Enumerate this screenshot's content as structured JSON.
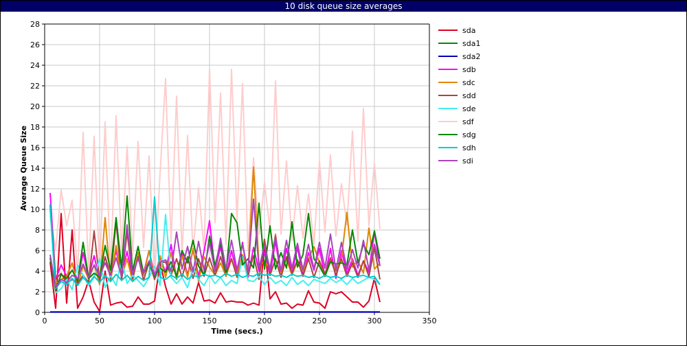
{
  "header": {
    "title": "10 disk queue size averages"
  },
  "chart_data": {
    "type": "line",
    "title": "10 disk queue size averages",
    "xlabel": "Time (secs.)",
    "ylabel": "Average Queue Size",
    "xlim": [
      0,
      350
    ],
    "ylim": [
      0,
      28
    ],
    "xticks": [
      0,
      50,
      100,
      150,
      200,
      250,
      300,
      350
    ],
    "yticks": [
      0,
      2,
      4,
      6,
      8,
      10,
      12,
      14,
      16,
      18,
      20,
      22,
      24,
      26,
      28
    ],
    "grid": true,
    "legend_position": "right",
    "x": [
      5,
      10,
      15,
      20,
      25,
      30,
      35,
      40,
      45,
      50,
      55,
      60,
      65,
      70,
      75,
      80,
      85,
      90,
      95,
      100,
      105,
      110,
      115,
      120,
      125,
      130,
      135,
      140,
      145,
      150,
      155,
      160,
      165,
      170,
      175,
      180,
      185,
      190,
      195,
      200,
      205,
      210,
      215,
      220,
      225,
      230,
      235,
      240,
      245,
      250,
      255,
      260,
      265,
      270,
      275,
      280,
      285,
      290,
      295,
      300,
      305
    ],
    "series": [
      {
        "name": "sda",
        "color": "#dd0022",
        "values": [
          4.9,
          0.4,
          9.6,
          0.9,
          8.0,
          0.4,
          1.5,
          3.1,
          1.0,
          0.1,
          4.0,
          0.7,
          0.9,
          1.0,
          0.5,
          0.6,
          1.5,
          0.8,
          0.8,
          1.1,
          4.8,
          2.5,
          0.8,
          1.8,
          0.8,
          1.5,
          0.9,
          2.9,
          1.1,
          1.2,
          0.9,
          1.9,
          1.0,
          1.1,
          1.0,
          1.0,
          0.7,
          0.9,
          0.7,
          6.7,
          1.3,
          2.0,
          0.8,
          0.9,
          0.4,
          0.8,
          0.7,
          2.1,
          1.0,
          0.9,
          0.4,
          2.0,
          1.8,
          2.0,
          1.5,
          1.0,
          1.0,
          0.5,
          1.1,
          3.3,
          1.0
        ]
      },
      {
        "name": "sda1",
        "color": "#008800",
        "values": [
          0.05,
          0.05,
          0.05,
          0.05,
          0.05,
          0.05,
          0.05,
          0.05,
          0.05,
          0.05,
          0.05,
          0.05,
          0.05,
          0.05,
          0.05,
          0.05,
          0.05,
          0.05,
          0.05,
          0.05,
          0.05,
          0.05,
          0.05,
          0.05,
          0.05,
          0.05,
          0.05,
          0.05,
          0.05,
          0.05,
          0.05,
          0.05,
          0.05,
          0.05,
          0.05,
          0.05,
          0.05,
          0.05,
          0.05,
          0.05,
          0.05,
          0.05,
          0.05,
          0.05,
          0.05,
          0.05,
          0.05,
          0.05,
          0.05,
          0.05,
          0.05,
          0.05,
          0.05,
          0.05,
          0.05,
          0.05,
          0.05,
          0.05,
          0.05,
          0.05,
          0.05
        ]
      },
      {
        "name": "sda2",
        "color": "#0000bb",
        "values": [
          0.03,
          0.03,
          0.03,
          0.03,
          0.03,
          0.03,
          0.03,
          0.03,
          0.03,
          0.03,
          0.03,
          0.03,
          0.03,
          0.03,
          0.03,
          0.03,
          0.03,
          0.03,
          0.03,
          0.03,
          0.03,
          0.03,
          0.03,
          0.03,
          0.03,
          0.03,
          0.03,
          0.03,
          0.03,
          0.03,
          0.03,
          0.03,
          0.03,
          0.03,
          0.03,
          0.03,
          0.03,
          0.03,
          0.03,
          0.03,
          0.03,
          0.03,
          0.03,
          0.03,
          0.03,
          0.03,
          0.03,
          0.03,
          0.03,
          0.03,
          0.03,
          0.03,
          0.03,
          0.03,
          0.03,
          0.03,
          0.03,
          0.03,
          0.03,
          0.03,
          0.03
        ]
      },
      {
        "name": "sdb",
        "color": "#ff00ff",
        "values": [
          11.6,
          3.2,
          4.6,
          3.5,
          4.8,
          3.0,
          5.8,
          3.4,
          5.5,
          3.1,
          5.4,
          3.6,
          6.0,
          3.7,
          5.9,
          3.4,
          5.6,
          3.8,
          6.0,
          3.6,
          5.3,
          3.9,
          6.6,
          3.2,
          5.8,
          3.6,
          6.1,
          3.5,
          5.9,
          8.9,
          4.0,
          6.4,
          3.5,
          6.0,
          3.8,
          6.8,
          3.4,
          6.3,
          4.0,
          5.8,
          3.6,
          6.9,
          3.5,
          6.2,
          3.8,
          6.3,
          3.6,
          5.8,
          4.1,
          6.2,
          3.5,
          6.2,
          3.3,
          6.0,
          3.8,
          5.2,
          3.6,
          5.0,
          3.9,
          7.9,
          4.5
        ]
      },
      {
        "name": "sdc",
        "color": "#dd8800",
        "values": [
          10.0,
          2.8,
          3.2,
          3.5,
          4.8,
          2.6,
          4.5,
          3.2,
          4.6,
          2.7,
          9.2,
          3.0,
          6.5,
          3.4,
          5.2,
          3.0,
          5.8,
          3.6,
          6.0,
          3.2,
          5.5,
          3.4,
          5.8,
          3.2,
          5.5,
          3.4,
          6.2,
          3.0,
          5.4,
          4.4,
          3.6,
          4.8,
          3.5,
          5.2,
          3.6,
          5.6,
          4.0,
          14.1,
          4.5,
          5.0,
          4.2,
          7.6,
          3.8,
          5.2,
          3.6,
          5.0,
          4.0,
          5.2,
          6.4,
          4.8,
          3.8,
          5.0,
          4.0,
          5.3,
          9.7,
          4.4,
          5.0,
          3.8,
          8.2,
          4.2,
          4.8
        ]
      },
      {
        "name": "sdd",
        "color": "#aa4444",
        "values": [
          10.4,
          3.2,
          3.8,
          2.8,
          3.2,
          2.8,
          3.6,
          2.9,
          7.9,
          3.0,
          5.4,
          3.3,
          8.8,
          3.1,
          7.8,
          3.3,
          5.4,
          3.1,
          4.9,
          3.2,
          4.8,
          4.9,
          3.6,
          5.2,
          3.4,
          5.4,
          3.3,
          5.2,
          3.5,
          5.3,
          3.6,
          5.4,
          3.7,
          5.2,
          3.4,
          5.1,
          3.6,
          5.5,
          3.2,
          7.1,
          3.6,
          5.2,
          3.4,
          5.4,
          3.8,
          5.1,
          3.5,
          5.2,
          3.4,
          5.0,
          3.7,
          5.3,
          3.6,
          5.2,
          3.5,
          4.8,
          3.4,
          5.0,
          3.5,
          6.3,
          3.2
        ]
      },
      {
        "name": "sde",
        "color": "#44eeee",
        "values": [
          10.2,
          1.9,
          2.3,
          3.2,
          2.2,
          4.6,
          3.6,
          2.6,
          3.4,
          5.2,
          2.4,
          3.6,
          2.6,
          5.1,
          2.8,
          3.6,
          3.1,
          2.5,
          3.4,
          4.5,
          2.6,
          9.5,
          3.4,
          2.8,
          3.4,
          2.4,
          4.4,
          3.2,
          2.6,
          3.6,
          2.8,
          3.4,
          2.6,
          3.1,
          2.8,
          5.4,
          3.1,
          3.0,
          3.5,
          2.7,
          3.4,
          2.8,
          3.1,
          2.6,
          3.4,
          2.7,
          3.1,
          2.6,
          3.2,
          3.0,
          2.8,
          3.3,
          2.9,
          3.2,
          2.7,
          3.3,
          2.8,
          3.1,
          3.4,
          3.2,
          2.7
        ]
      },
      {
        "name": "sdf",
        "color": "#ffcccc",
        "values": [
          9.4,
          6.1,
          11.9,
          8.4,
          10.9,
          3.8,
          17.5,
          3.7,
          17.1,
          3.8,
          18.5,
          4.0,
          19.1,
          5.8,
          16.1,
          5.5,
          16.6,
          6.3,
          15.2,
          3.2,
          13.5,
          22.7,
          6.8,
          21.0,
          5.6,
          17.2,
          5.9,
          12.1,
          6.0,
          23.6,
          8.7,
          21.3,
          6.6,
          23.6,
          8.9,
          22.2,
          6.1,
          15.0,
          7.6,
          12.6,
          8.0,
          22.5,
          7.6,
          14.7,
          7.0,
          12.3,
          7.2,
          11.5,
          6.6,
          14.7,
          7.8,
          15.3,
          7.4,
          12.5,
          8.5,
          17.6,
          6.9,
          19.8,
          8.4,
          14.5,
          8.1
        ]
      },
      {
        "name": "sdg",
        "color": "#008800",
        "values": [
          5.3,
          2.1,
          3.7,
          3.3,
          4.1,
          3.0,
          6.8,
          3.3,
          3.8,
          3.4,
          6.5,
          4.1,
          9.2,
          4.3,
          11.3,
          4.0,
          6.4,
          3.8,
          4.7,
          3.5,
          4.3,
          3.9,
          4.9,
          3.5,
          6.0,
          4.8,
          7.0,
          4.5,
          3.6,
          7.4,
          4.5,
          6.8,
          3.8,
          9.6,
          8.7,
          4.6,
          5.2,
          4.3,
          10.6,
          4.2,
          8.4,
          4.2,
          5.8,
          4.3,
          8.8,
          4.4,
          5.6,
          9.6,
          5.2,
          4.5,
          3.5,
          4.9,
          4.7,
          4.8,
          4.6,
          8.0,
          4.8,
          6.6,
          5.6,
          7.9,
          5.2
        ]
      },
      {
        "name": "sdh",
        "color": "#00cccc",
        "values": [
          10.5,
          2.3,
          3.0,
          2.7,
          3.3,
          2.6,
          3.4,
          2.8,
          3.5,
          2.9,
          3.6,
          3.0,
          3.7,
          3.1,
          3.6,
          3.0,
          3.5,
          3.1,
          3.4,
          11.2,
          3.4,
          3.2,
          3.6,
          3.3,
          3.7,
          3.2,
          3.6,
          3.4,
          3.7,
          3.5,
          3.6,
          3.4,
          3.8,
          3.5,
          3.7,
          3.4,
          3.6,
          3.5,
          3.8,
          3.6,
          3.7,
          3.5,
          3.6,
          3.4,
          3.7,
          3.5,
          3.6,
          3.4,
          3.5,
          3.3,
          3.6,
          3.4,
          3.5,
          3.3,
          3.6,
          3.4,
          3.5,
          3.6,
          3.4,
          3.5,
          2.7
        ]
      },
      {
        "name": "sdi",
        "color": "#aa44bb",
        "values": [
          5.6,
          2.4,
          3.2,
          2.9,
          3.6,
          3.3,
          4.7,
          3.4,
          4.6,
          3.5,
          4.8,
          3.6,
          5.3,
          3.5,
          8.5,
          3.7,
          5.2,
          3.8,
          5.0,
          3.6,
          4.9,
          5.1,
          4.0,
          7.8,
          4.2,
          6.4,
          3.9,
          6.9,
          4.1,
          6.8,
          4.0,
          7.2,
          4.2,
          7.0,
          4.1,
          6.6,
          4.0,
          11.0,
          4.3,
          6.5,
          4.2,
          7.4,
          4.0,
          7.0,
          4.3,
          6.7,
          4.1,
          6.6,
          4.2,
          6.8,
          4.3,
          7.6,
          4.1,
          6.8,
          4.2,
          6.1,
          4.3,
          7.0,
          4.1,
          6.6,
          4.5
        ]
      }
    ]
  }
}
